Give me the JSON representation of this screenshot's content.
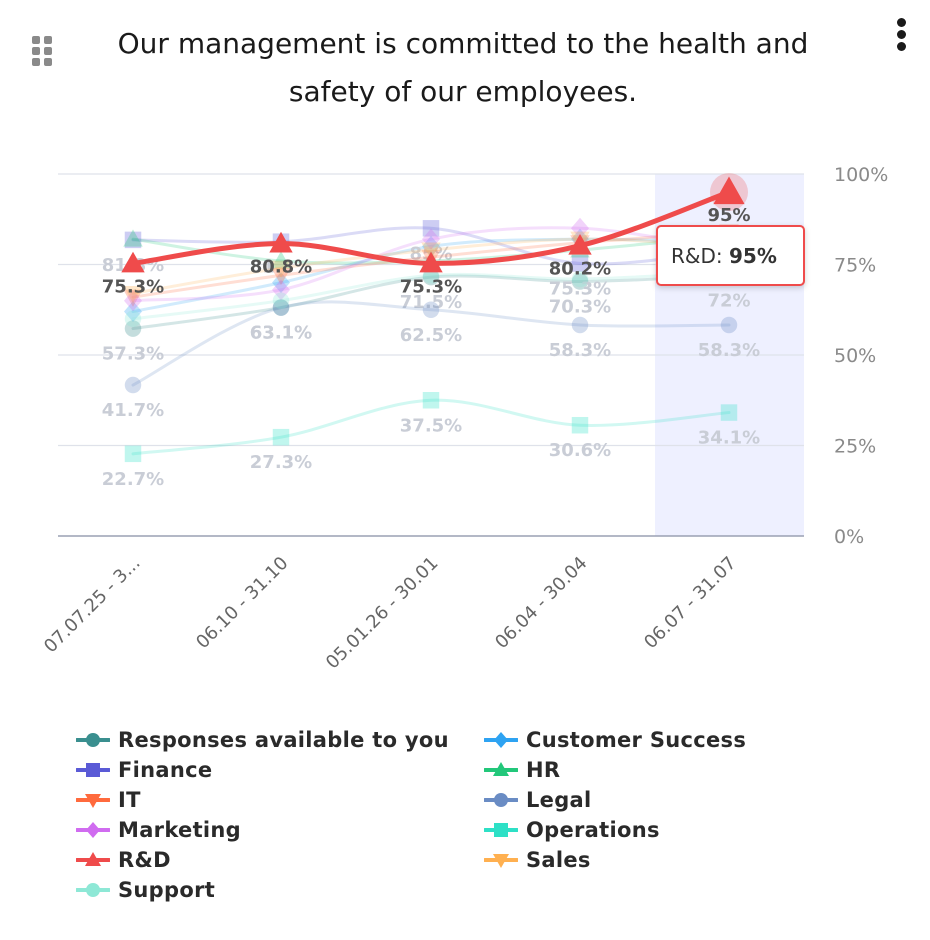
{
  "header": {
    "title": "Our management is committed to the health and safety of our employees."
  },
  "tooltip": {
    "series": "R&D",
    "value": "95%"
  },
  "chart_data": {
    "type": "line",
    "categories": [
      "07.07.25 - 3...",
      "06.10 - 31.10",
      "05.01.26 - 30.01",
      "06.04 - 30.04",
      "06.07 - 31.07"
    ],
    "y_axis": {
      "min": 0,
      "max": 100,
      "ticks": [
        0,
        25,
        50,
        75,
        100
      ],
      "unit": "%",
      "position": "right"
    },
    "highlighted_category": "06.07 - 31.07",
    "highlighted_series": "R&D",
    "grid": true,
    "legend_position": "bottom",
    "series": [
      {
        "name": "Responses available to you",
        "color": "#3a8f8f",
        "marker": "circle",
        "values": [
          57.3,
          63.1,
          71.5,
          70.3,
          72
        ],
        "labels": true
      },
      {
        "name": "Customer Success",
        "color": "#2ea3f2",
        "marker": "diamond",
        "values": [
          62,
          70,
          80,
          82,
          81
        ],
        "labels": false
      },
      {
        "name": "Finance",
        "color": "#5a5ad6",
        "marker": "square",
        "values": [
          81.8,
          81.3,
          85,
          75.3,
          79
        ],
        "labels": true
      },
      {
        "name": "HR",
        "color": "#22c77a",
        "marker": "triangle",
        "values": [
          82,
          76,
          76,
          79,
          83
        ],
        "labels": false
      },
      {
        "name": "IT",
        "color": "#ff6a3d",
        "marker": "triangle-down",
        "values": [
          66,
          72,
          77,
          81,
          84
        ],
        "labels": false
      },
      {
        "name": "Legal",
        "color": "#6a8cc4",
        "marker": "circle",
        "values": [
          41.7,
          63.1,
          62.5,
          58.3,
          58.3
        ],
        "labels": true
      },
      {
        "name": "Marketing",
        "color": "#d06cf0",
        "marker": "diamond",
        "values": [
          65,
          68,
          82,
          85,
          79
        ],
        "labels": false
      },
      {
        "name": "Operations",
        "color": "#2ee0c6",
        "marker": "square",
        "values": [
          22.7,
          27.3,
          37.5,
          30.6,
          34.1
        ],
        "labels": true
      },
      {
        "name": "R&D",
        "color": "#ef4b4b",
        "marker": "triangle",
        "values": [
          75.3,
          80.8,
          75.3,
          80.2,
          95
        ],
        "labels": true
      },
      {
        "name": "Sales",
        "color": "#ffb050",
        "marker": "triangle-down",
        "values": [
          67,
          74,
          79,
          82,
          80
        ],
        "labels": false
      },
      {
        "name": "Support",
        "color": "#8ee8d6",
        "marker": "circle",
        "values": [
          60,
          65,
          72,
          71,
          73
        ],
        "labels": false
      }
    ]
  }
}
